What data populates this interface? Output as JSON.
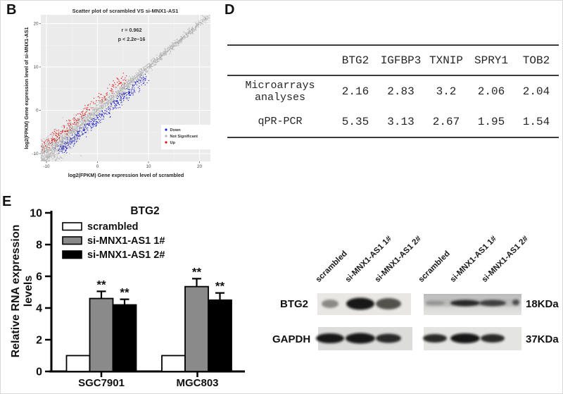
{
  "panel_labels": {
    "b": "B",
    "d": "D",
    "e": "E"
  },
  "colors": {
    "scatter_plot_bg": "#ebebeb",
    "scatter_down": "#2323cb",
    "scatter_ns": "#b4b4b4",
    "scatter_up": "#e01212",
    "bar_scrambled": "#ffffff",
    "bar_si1": "#8a8a8a",
    "bar_si2": "#000000",
    "axis": "#000000"
  },
  "chart_data": [
    {
      "type": "scatter",
      "title": "Scatter plot of scrambled VS si-MNX1-AS1",
      "xlabel": "log2(FPKM) Gene expression level of scrambled",
      "ylabel": "log2(FPKM) Gene expression level of si-MNX1-AS1",
      "xlim": [
        -12,
        22
      ],
      "ylim": [
        -12,
        22
      ],
      "x_ticks": [
        -10,
        0,
        10,
        20
      ],
      "y_ticks": [
        -10,
        0,
        10,
        20
      ],
      "minor_ticks": [
        -5,
        5,
        15
      ],
      "grid": true,
      "plot_bg": "#ebebeb",
      "annotations": [
        "r =  0.962",
        "p < 2.2e−16"
      ],
      "correlation_r": 0.962,
      "p_value": "< 2.2e-16",
      "identity_line": true,
      "legend_position": "inside-bottom-right",
      "legend": [
        {
          "label": "Down",
          "color": "#2323cb"
        },
        {
          "label": "Not Significant",
          "color": "#b4b4b4"
        },
        {
          "label": "Up",
          "color": "#e01212"
        }
      ],
      "cloud": {
        "seed": 11,
        "series": [
          {
            "name": "Not Significant",
            "color": "#b4b4b4",
            "n": 2600,
            "band": "on"
          },
          {
            "name": "Down",
            "color": "#2323cb",
            "n": 430,
            "band": "below",
            "offset_range": [
              1.2,
              3.2
            ]
          },
          {
            "name": "Up",
            "color": "#e01212",
            "n": 230,
            "band": "above",
            "offset_range": [
              1.2,
              3.2
            ]
          }
        ]
      }
    },
    {
      "type": "bar",
      "title": "BTG2",
      "categories": [
        "SGC7901",
        "MGC803"
      ],
      "ylabel": "Relative RNA expression levels",
      "ylabel_lines": [
        "Relative RNA expression",
        "levels"
      ],
      "ylim": [
        0,
        10
      ],
      "yticks": [
        0,
        2,
        4,
        6,
        8,
        10
      ],
      "legend_position": "inside-top-left",
      "series": [
        {
          "name": "scrambled",
          "color": "#ffffff",
          "values": [
            1.0,
            1.0
          ],
          "errors": [
            0,
            0
          ],
          "sig": [
            "",
            ""
          ]
        },
        {
          "name": "si-MNX1-AS1 1#",
          "color": "#8a8a8a",
          "values": [
            4.6,
            5.35
          ],
          "errors": [
            0.45,
            0.5
          ],
          "sig": [
            "**",
            "**"
          ]
        },
        {
          "name": "si-MNX1-AS1 2#",
          "color": "#000000",
          "values": [
            4.2,
            4.5
          ],
          "errors": [
            0.35,
            0.45
          ],
          "sig": [
            "**",
            "**"
          ]
        }
      ]
    },
    {
      "type": "table",
      "columns": [
        "BTG2",
        "IGFBP3",
        "TXNIP",
        "SPRY1",
        "TOB2"
      ],
      "rows": [
        {
          "name": "Microarrays analyses",
          "values": [
            "2.16",
            "2.83",
            "3.2",
            "2.06",
            "2.04"
          ]
        },
        {
          "name": "qPR-PCR",
          "values": [
            "5.35",
            "3.13",
            "2.67",
            "1.95",
            "1.54"
          ]
        }
      ]
    }
  ],
  "panel_e": {
    "blot": {
      "lane_labels": [
        "scrambled",
        "si-MNX1-AS1 1#",
        "si-MNX1-AS1 2#",
        "scrambled",
        "si-MNX1-AS1 1#",
        "si-MNX1-AS1 2#"
      ],
      "rows": [
        {
          "name": "BTG2",
          "size": "18KDa"
        },
        {
          "name": "GAPDH",
          "size": "37KDa"
        }
      ],
      "band_intensities": {
        "BTG2": [
          [
            0.55,
            0.95,
            0.82
          ],
          [
            0.5,
            0.92,
            0.85
          ]
        ],
        "GAPDH": [
          [
            0.95,
            0.95,
            0.9
          ],
          [
            0.9,
            0.95,
            0.9
          ]
        ]
      }
    }
  }
}
